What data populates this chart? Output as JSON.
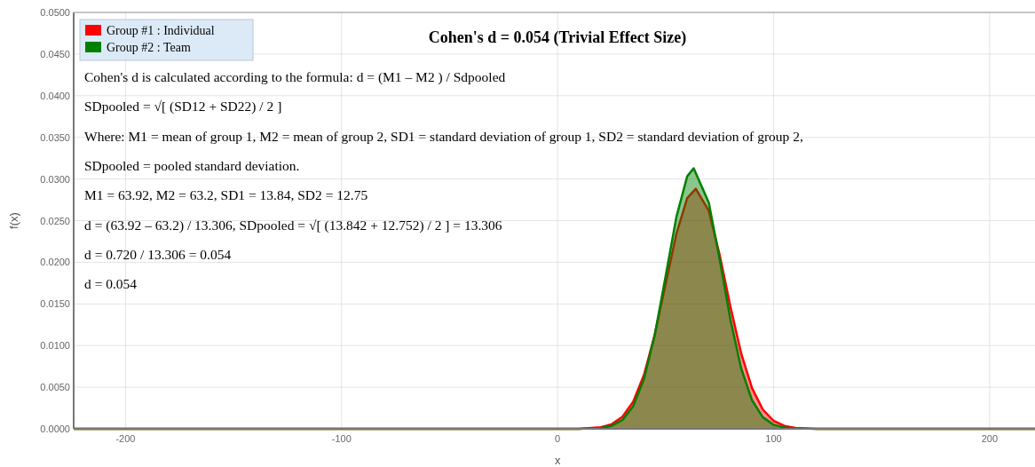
{
  "chart_data": {
    "type": "area",
    "title": "Cohen's d = 0.054 (Trivial Effect Size)",
    "xlabel": "x",
    "ylabel": "f(x)",
    "xlim": [
      -224,
      221
    ],
    "xticks": [
      -200,
      -100,
      0,
      100,
      200
    ],
    "ylim": [
      0,
      0.05
    ],
    "yticks": [
      {
        "value": 0,
        "label": "0.0000"
      },
      {
        "value": 0.005,
        "label": "0.0050"
      },
      {
        "value": 0.01,
        "label": "0.0100"
      },
      {
        "value": 0.015,
        "label": "0.0150"
      },
      {
        "value": 0.02,
        "label": "0.0200"
      },
      {
        "value": 0.025,
        "label": "0.0250"
      },
      {
        "value": 0.03,
        "label": "0.0300"
      },
      {
        "value": 0.035,
        "label": "0.0350"
      },
      {
        "value": 0.04,
        "label": "0.0400"
      },
      {
        "value": 0.045,
        "label": "0.0450"
      },
      {
        "value": 0.05,
        "label": "0.0500"
      }
    ],
    "grid": true,
    "legend": "top left",
    "series": [
      {
        "name": "Group #1 : Individual",
        "color": "#ff0000",
        "x": [
          -224,
          0,
          10,
          20,
          25,
          30,
          35,
          40,
          45,
          50,
          55,
          60,
          64,
          70,
          75,
          80,
          85,
          90,
          95,
          100,
          105,
          110,
          120,
          221
        ],
        "values": [
          0,
          0,
          1e-05,
          0.00019,
          0.00055,
          0.00143,
          0.00325,
          0.00648,
          0.01133,
          0.01738,
          0.02342,
          0.0277,
          0.02883,
          0.02618,
          0.02093,
          0.01468,
          0.00904,
          0.00489,
          0.00232,
          0.00096,
          0.00035,
          0.00011,
          0,
          0
        ]
      },
      {
        "name": "Group #2 : Team",
        "color": "#008000",
        "x": [
          -224,
          10,
          20,
          25,
          30,
          35,
          40,
          45,
          50,
          55,
          60,
          63,
          70,
          75,
          80,
          85,
          90,
          95,
          100,
          105,
          110,
          120,
          221
        ],
        "values": [
          0,
          0,
          0.0001,
          0.00035,
          0.00105,
          0.00271,
          0.00598,
          0.0113,
          0.01831,
          0.02544,
          0.03032,
          0.03129,
          0.02715,
          0.0204,
          0.01313,
          0.00725,
          0.00344,
          0.0014,
          0.00049,
          0.00015,
          4e-05,
          0,
          0
        ]
      }
    ],
    "annotations": [
      "Cohen's d is calculated according to the formula: d = (M1 – M2 ) / Sdpooled",
      "SDpooled = √[ (SD12 + SD22) / 2 ]",
      "Where: M1 = mean of group 1, M2 = mean of group 2, SD1 = standard deviation of group 1, SD2 = standard deviation of group 2,",
      "SDpooled = pooled standard deviation.",
      "M1 = 63.92, M2 = 63.2, SD1 = 13.84, SD2 = 12.75",
      "d = (63.92 – 63.2) / 13.306, SDpooled = √[ (13.842 + 12.752) / 2 ] = 13.306",
      "d = 0.720 / 13.306 = 0.054",
      "d = 0.054"
    ]
  }
}
